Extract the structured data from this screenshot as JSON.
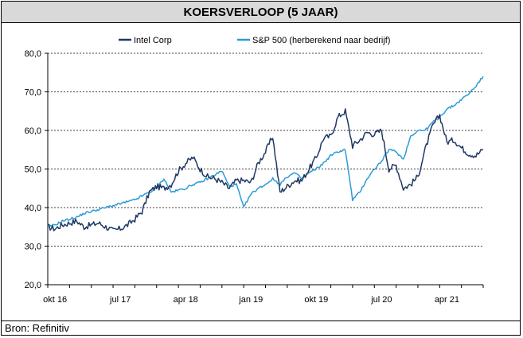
{
  "title": "KOERSVERLOOP (5 JAAR)",
  "source": "Bron: Refinitiv",
  "chart_data": {
    "type": "line",
    "title": "KOERSVERLOOP (5 JAAR)",
    "xlabel": "",
    "ylabel": "",
    "ylim": [
      20,
      80
    ],
    "yticks": [
      "20,0",
      "30,0",
      "40,0",
      "50,0",
      "60,0",
      "70,0",
      "80,0"
    ],
    "xticks": [
      "okt 16",
      "jul 17",
      "apr 18",
      "jan 19",
      "okt 19",
      "jul 20",
      "apr 21"
    ],
    "grid": "horizontal dashed",
    "legend": "top",
    "x_months": [
      "2016-09",
      "2016-10",
      "2016-11",
      "2016-12",
      "2017-01",
      "2017-02",
      "2017-03",
      "2017-04",
      "2017-05",
      "2017-06",
      "2017-07",
      "2017-08",
      "2017-09",
      "2017-10",
      "2017-11",
      "2017-12",
      "2018-01",
      "2018-02",
      "2018-03",
      "2018-04",
      "2018-05",
      "2018-06",
      "2018-07",
      "2018-08",
      "2018-09",
      "2018-10",
      "2018-11",
      "2018-12",
      "2019-01",
      "2019-02",
      "2019-03",
      "2019-04",
      "2019-05",
      "2019-06",
      "2019-07",
      "2019-08",
      "2019-09",
      "2019-10",
      "2019-11",
      "2019-12",
      "2020-01",
      "2020-02",
      "2020-03",
      "2020-04",
      "2020-05",
      "2020-06",
      "2020-07",
      "2020-08",
      "2020-09",
      "2020-10",
      "2020-11",
      "2020-12",
      "2021-01",
      "2021-02",
      "2021-03",
      "2021-04",
      "2021-05",
      "2021-06",
      "2021-07",
      "2021-08",
      "2021-09"
    ],
    "series": [
      {
        "name": "Intel Corp",
        "color": "#1f3864",
        "values": [
          35.0,
          34.5,
          35.5,
          36.0,
          36.5,
          35.0,
          35.5,
          36.0,
          35.0,
          34.0,
          34.5,
          35.5,
          37.0,
          39.0,
          44.0,
          45.5,
          45.0,
          46.0,
          49.5,
          51.5,
          53.0,
          50.0,
          48.0,
          47.5,
          46.5,
          45.0,
          47.0,
          47.0,
          46.5,
          51.5,
          54.5,
          58.5,
          44.0,
          45.5,
          47.0,
          47.0,
          50.0,
          53.0,
          58.0,
          58.5,
          63.5,
          65.0,
          56.0,
          57.5,
          59.5,
          59.0,
          60.0,
          50.0,
          51.0,
          45.0,
          46.0,
          48.0,
          55.0,
          61.0,
          64.0,
          57.0,
          57.5,
          55.5,
          54.0,
          53.5,
          55.0
        ]
      },
      {
        "name": "S&P 500 (herberekend naar bedrijf)",
        "color": "#2e9bd6",
        "values": [
          35.0,
          35.5,
          36.5,
          37.0,
          37.5,
          38.5,
          39.0,
          39.5,
          40.0,
          40.5,
          41.0,
          41.5,
          42.0,
          43.0,
          44.0,
          45.0,
          47.5,
          44.0,
          44.5,
          45.0,
          46.0,
          46.5,
          47.5,
          48.5,
          49.5,
          45.5,
          46.0,
          40.0,
          43.5,
          45.0,
          46.0,
          47.5,
          46.0,
          48.0,
          49.0,
          47.5,
          49.0,
          50.0,
          51.5,
          53.5,
          54.5,
          55.0,
          42.0,
          44.0,
          47.5,
          50.0,
          52.0,
          55.0,
          54.5,
          52.5,
          58.5,
          60.0,
          60.0,
          62.0,
          63.5,
          65.5,
          66.5,
          68.0,
          69.5,
          71.5,
          74.0
        ]
      }
    ]
  }
}
